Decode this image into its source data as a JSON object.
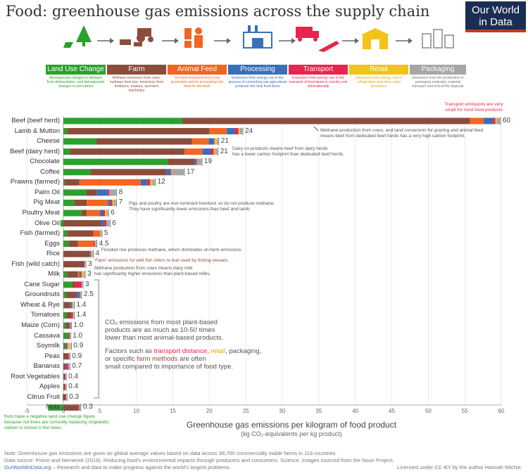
{
  "title": "Food: greenhouse gas emissions across the supply chain",
  "logo": {
    "line1": "Our World",
    "line2": "in Data"
  },
  "stages": [
    {
      "label": "Land Use Change",
      "color": "#2ca02c",
      "desc": "Aboveground changes in biomass from deforestation, and belowground changes in soil carbon",
      "icon": "tree-icon"
    },
    {
      "label": "Farm",
      "color": "#8b4d3b",
      "desc": "Methane emissions from cows, methane from rice, emissions from fertilizers, manure, and farm machinery",
      "icon": "tractor-icon"
    },
    {
      "label": "Animal Feed",
      "color": "#f26522",
      "desc": "On-farm emissions from crop production and its processing into feed for livestock",
      "icon": "feed-icon"
    },
    {
      "label": "Processing",
      "color": "#3a6fb7",
      "desc": "Emissions from energy use in the process of converting raw agricultural products into final food items",
      "icon": "factory-icon"
    },
    {
      "label": "Transport",
      "color": "#e8244f",
      "desc": "Emissions from energy use in the transport of food items in country and internationally",
      "icon": "truck-icon"
    },
    {
      "label": "Retail",
      "color": "#f2c318",
      "desc": "Emissions from energy use in refrigeration and other retail processes",
      "icon": "shop-icon"
    },
    {
      "label": "Packaging",
      "color": "#a6a6a6",
      "desc": "Emissions from the production of packaging materials, material transport and end-of-life disposal",
      "icon": "package-icon"
    }
  ],
  "chart_data": {
    "type": "bar",
    "orientation": "horizontal",
    "stacked": true,
    "xlim": [
      -5,
      60
    ],
    "xticks": [
      -5,
      0,
      5,
      10,
      15,
      20,
      25,
      30,
      35,
      40,
      45,
      50,
      55,
      60
    ],
    "xlabel": "Greenhouse gas emissions per kilogram of food product",
    "xlabel_sub": "(kg CO₂-equivalents per kg product)",
    "series_names": [
      "Land Use Change",
      "Farm",
      "Animal Feed",
      "Processing",
      "Transport",
      "Retail",
      "Packaging"
    ],
    "series_colors": [
      "#2ca02c",
      "#8b4d3b",
      "#f26522",
      "#3a6fb7",
      "#e8244f",
      "#f2c318",
      "#a6a6a6"
    ],
    "bars": [
      {
        "label": "Beef (beef herd)",
        "total": "60",
        "values": [
          16.3,
          39.4,
          1.9,
          1.3,
          0.3,
          0.2,
          0.4
        ]
      },
      {
        "label": "Lamb & Mutton",
        "total": "24",
        "values": [
          0.5,
          19.5,
          2.4,
          1.1,
          0.5,
          0.2,
          0.3
        ]
      },
      {
        "label": "Cheese",
        "total": "21",
        "values": [
          4.5,
          13.1,
          2.3,
          0.7,
          0.1,
          0.3,
          0.2
        ]
      },
      {
        "label": "Beef (dairy herd)",
        "total": "21",
        "values": [
          0.9,
          15.7,
          2.5,
          1.1,
          0.4,
          0.2,
          0.3
        ]
      },
      {
        "label": "Chocolate",
        "total": "19",
        "values": [
          14.3,
          3.7,
          0.0,
          0.2,
          0.1,
          0.0,
          0.6
        ]
      },
      {
        "label": "Coffee",
        "total": "17",
        "values": [
          3.7,
          10.4,
          0.0,
          0.6,
          0.1,
          0.1,
          1.6
        ]
      },
      {
        "label": "Prawns (farmed)",
        "total": "12",
        "values": [
          0.2,
          2.0,
          8.4,
          0.9,
          0.4,
          0.3,
          0.3
        ]
      },
      {
        "label": "Palm Oil",
        "total": "8",
        "values": [
          3.1,
          1.5,
          0.0,
          1.5,
          0.2,
          0.0,
          0.9
        ]
      },
      {
        "label": "Pig Meat",
        "total": "7",
        "values": [
          1.5,
          1.7,
          2.9,
          0.3,
          0.3,
          0.2,
          0.3
        ]
      },
      {
        "label": "Poultry Meat",
        "total": "6",
        "values": [
          2.5,
          0.7,
          1.8,
          0.4,
          0.3,
          0.2,
          0.2
        ]
      },
      {
        "label": "Olive Oil",
        "total": "6",
        "values": [
          -0.4,
          5.2,
          0.0,
          0.4,
          0.3,
          0.0,
          0.4
        ]
      },
      {
        "label": "Fish (farmed)",
        "total": "5",
        "values": [
          0.5,
          3.6,
          0.8,
          0.0,
          0.1,
          0.1,
          0.1
        ]
      },
      {
        "label": "Eggs",
        "total": "4.5",
        "values": [
          0.7,
          1.3,
          2.2,
          0.0,
          0.1,
          0.0,
          0.2
        ]
      },
      {
        "label": "Rice",
        "total": "4",
        "values": [
          0.0,
          3.6,
          0.0,
          0.1,
          0.1,
          0.1,
          0.1
        ]
      },
      {
        "label": "Fish (wild catch)",
        "total": "3",
        "values": [
          0.0,
          2.8,
          0.0,
          0.0,
          0.1,
          0.0,
          0.1
        ]
      },
      {
        "label": "Milk",
        "total": "3",
        "values": [
          0.5,
          1.5,
          0.2,
          0.2,
          0.1,
          0.3,
          0.1
        ]
      },
      {
        "label": "Cane Sugar",
        "total": "3",
        "values": [
          1.2,
          0.5,
          0.0,
          0.0,
          0.8,
          0.0,
          0.1
        ]
      },
      {
        "label": "Groundnuts",
        "total": "2.5",
        "values": [
          0.4,
          1.4,
          0.0,
          0.4,
          0.1,
          0.0,
          0.1
        ]
      },
      {
        "label": "Wheat & Rye",
        "total": "1.4",
        "values": [
          0.1,
          0.8,
          0.0,
          0.2,
          0.1,
          0.1,
          0.1
        ]
      },
      {
        "label": "Tomatoes",
        "total": "1.4",
        "values": [
          0.4,
          0.7,
          0.0,
          0.0,
          0.2,
          0.0,
          0.1
        ]
      },
      {
        "label": "Maize (Corn)",
        "total": "1.0",
        "values": [
          0.3,
          0.5,
          0.0,
          0.1,
          0.1,
          0.0,
          0.0
        ]
      },
      {
        "label": "Cassava",
        "total": "1.0",
        "values": [
          0.6,
          0.2,
          0.0,
          0.0,
          0.1,
          0.0,
          0.0
        ]
      },
      {
        "label": "Soymilk",
        "total": "0.9",
        "values": [
          0.2,
          0.1,
          0.0,
          0.2,
          0.1,
          0.3,
          0.1
        ]
      },
      {
        "label": "Peas",
        "total": "0.9",
        "values": [
          0.0,
          0.7,
          0.0,
          0.0,
          0.1,
          0.0,
          0.0
        ]
      },
      {
        "label": "Bananas",
        "total": "0.7",
        "values": [
          0.0,
          0.3,
          0.0,
          0.1,
          0.3,
          0.0,
          0.1
        ]
      },
      {
        "label": "Root Vegetables",
        "total": "0.4",
        "values": [
          0.0,
          0.2,
          0.0,
          0.0,
          0.1,
          0.0,
          0.0
        ]
      },
      {
        "label": "Apples",
        "total": "0.4",
        "values": [
          0.0,
          0.2,
          0.0,
          0.0,
          0.1,
          0.0,
          0.0
        ]
      },
      {
        "label": "Citrus Fruit",
        "total": "0.3",
        "values": [
          -0.1,
          0.3,
          0.0,
          0.0,
          0.1,
          0.0,
          0.0
        ]
      },
      {
        "label": "Nuts",
        "total": "0.3",
        "values": [
          -2.1,
          2.1,
          0.0,
          0.0,
          0.1,
          0.0,
          0.1
        ]
      }
    ]
  },
  "annotations": {
    "transport": "Transport emissions are very small for most food products",
    "beef_line1": "Methane production from cows, and land conversion for grazing and animal feed",
    "beef_line2": "means beef from dedicated beef herds has a very high carbon footprint.",
    "dairy_line1": "Dairy co-products means beef from dairy herds",
    "dairy_line2": "has a lower carbon footprint than dedicated beef herds.",
    "pig_line1": "Pigs and poultry are non-ruminant livestock so do not produce methane.",
    "pig_line2": "They have significantly lower emissions than beef and lamb.",
    "rice": "Flooded rice produces methane, which dominates on-farm emissions.",
    "fish_pre": "'Farm' emissions for wild fish refers to fuel used by fishing vessels.",
    "milk_line1": "Methane production from cows means dairy milk",
    "milk_line2": "has significantly higher emissions than plant-based milks.",
    "plant_line1": "CO₂ emissions from most plant-based",
    "plant_line2": "products are as much as 10-50 times",
    "plant_line3": "lower than most animal-based products.",
    "factor_pre": "Factors such as ",
    "factor_transport": "transport distance",
    "factor_comma": ", ",
    "factor_retail": "retail",
    "factor_mid": ", packaging,",
    "factor_line2_pre": "or specific ",
    "factor_farm": "farm methods",
    "factor_line2_post": " are often",
    "factor_line3": "small compared to importance of food type.",
    "nuts_line1": "Nuts have a negative land use change figure",
    "nuts_line2": "because nut trees are currently replacing croplands;",
    "nuts_line3": "carbon is stored in the trees."
  },
  "footer": {
    "note": "Note: Greenhouse gas emissions are given as global average values based on data across 38,700 commercially viable farms in 119 countries.",
    "source": "Data source: Poore and Nemecek (2018). Reducing food's environmental impacts through producers and consumers. Science. Images sourced from the Noun Project.",
    "site": "OurWorldinData.org",
    "tagline": " – Research and data to make progress against the world's largest problems.",
    "license": "Licensed under CC-BY by the author Hannah Ritchie."
  }
}
